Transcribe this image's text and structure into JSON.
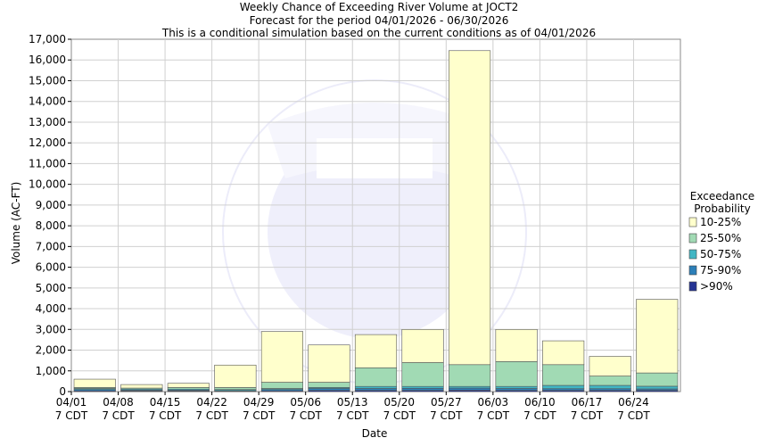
{
  "chart_data": {
    "type": "bar",
    "stacked": true,
    "title": [
      "Weekly Chance of Exceeding River Volume at JOCT2",
      "Forecast for the period 04/01/2026 - 06/30/2026",
      "This is a conditional simulation based on the current conditions as of 04/01/2026"
    ],
    "xlabel": "Date",
    "ylabel": "Volume (AC-FT)",
    "ylim": [
      0,
      17000
    ],
    "yticks": [
      0,
      1000,
      2000,
      3000,
      4000,
      5000,
      6000,
      7000,
      8000,
      9000,
      10000,
      11000,
      12000,
      13000,
      14000,
      15000,
      16000,
      17000
    ],
    "ytick_labels": [
      "0",
      "1,000",
      "2,000",
      "3,000",
      "4,000",
      "5,000",
      "6,000",
      "7,000",
      "8,000",
      "9,000",
      "10,000",
      "11,000",
      "12,000",
      "13,000",
      "14,000",
      "15,000",
      "16,000",
      "17,000"
    ],
    "categories": [
      "04/01",
      "04/08",
      "04/15",
      "04/22",
      "04/29",
      "05/06",
      "05/13",
      "05/20",
      "05/27",
      "06/03",
      "06/10",
      "06/17",
      "06/24"
    ],
    "category_sublabel": "7 CDT",
    "grid": true,
    "legend": {
      "title": "Exceedance\nProbability",
      "placement": "right",
      "entries": [
        {
          "label": "10-25%",
          "color": "#ffffcc"
        },
        {
          "label": "25-50%",
          "color": "#a1dab4"
        },
        {
          "label": "50-75%",
          "color": "#41b6c4"
        },
        {
          "label": "75-90%",
          "color": "#2c7fb8"
        },
        {
          "label": ">90%",
          "color": "#253494"
        }
      ]
    },
    "series": [
      {
        "name": ">90%",
        "color": "#253494",
        "values": [
          40,
          30,
          30,
          20,
          40,
          60,
          60,
          60,
          70,
          60,
          60,
          60,
          60
        ]
      },
      {
        "name": "75-90%",
        "color": "#2c7fb8",
        "values": [
          60,
          40,
          40,
          30,
          60,
          90,
          90,
          100,
          100,
          90,
          80,
          80,
          70
        ]
      },
      {
        "name": "50-75%",
        "color": "#41b6c4",
        "values": [
          50,
          50,
          50,
          50,
          50,
          50,
          100,
          90,
          80,
          100,
          160,
          160,
          130
        ]
      },
      {
        "name": "25-50%",
        "color": "#a1dab4",
        "values": [
          50,
          50,
          80,
          100,
          300,
          250,
          900,
          1150,
          1050,
          1200,
          1000,
          450,
          640
        ]
      },
      {
        "name": "10-25%",
        "color": "#ffffcc",
        "values": [
          400,
          170,
          200,
          1080,
          2450,
          1800,
          1600,
          1600,
          15150,
          1550,
          1150,
          950,
          3550
        ]
      }
    ]
  }
}
